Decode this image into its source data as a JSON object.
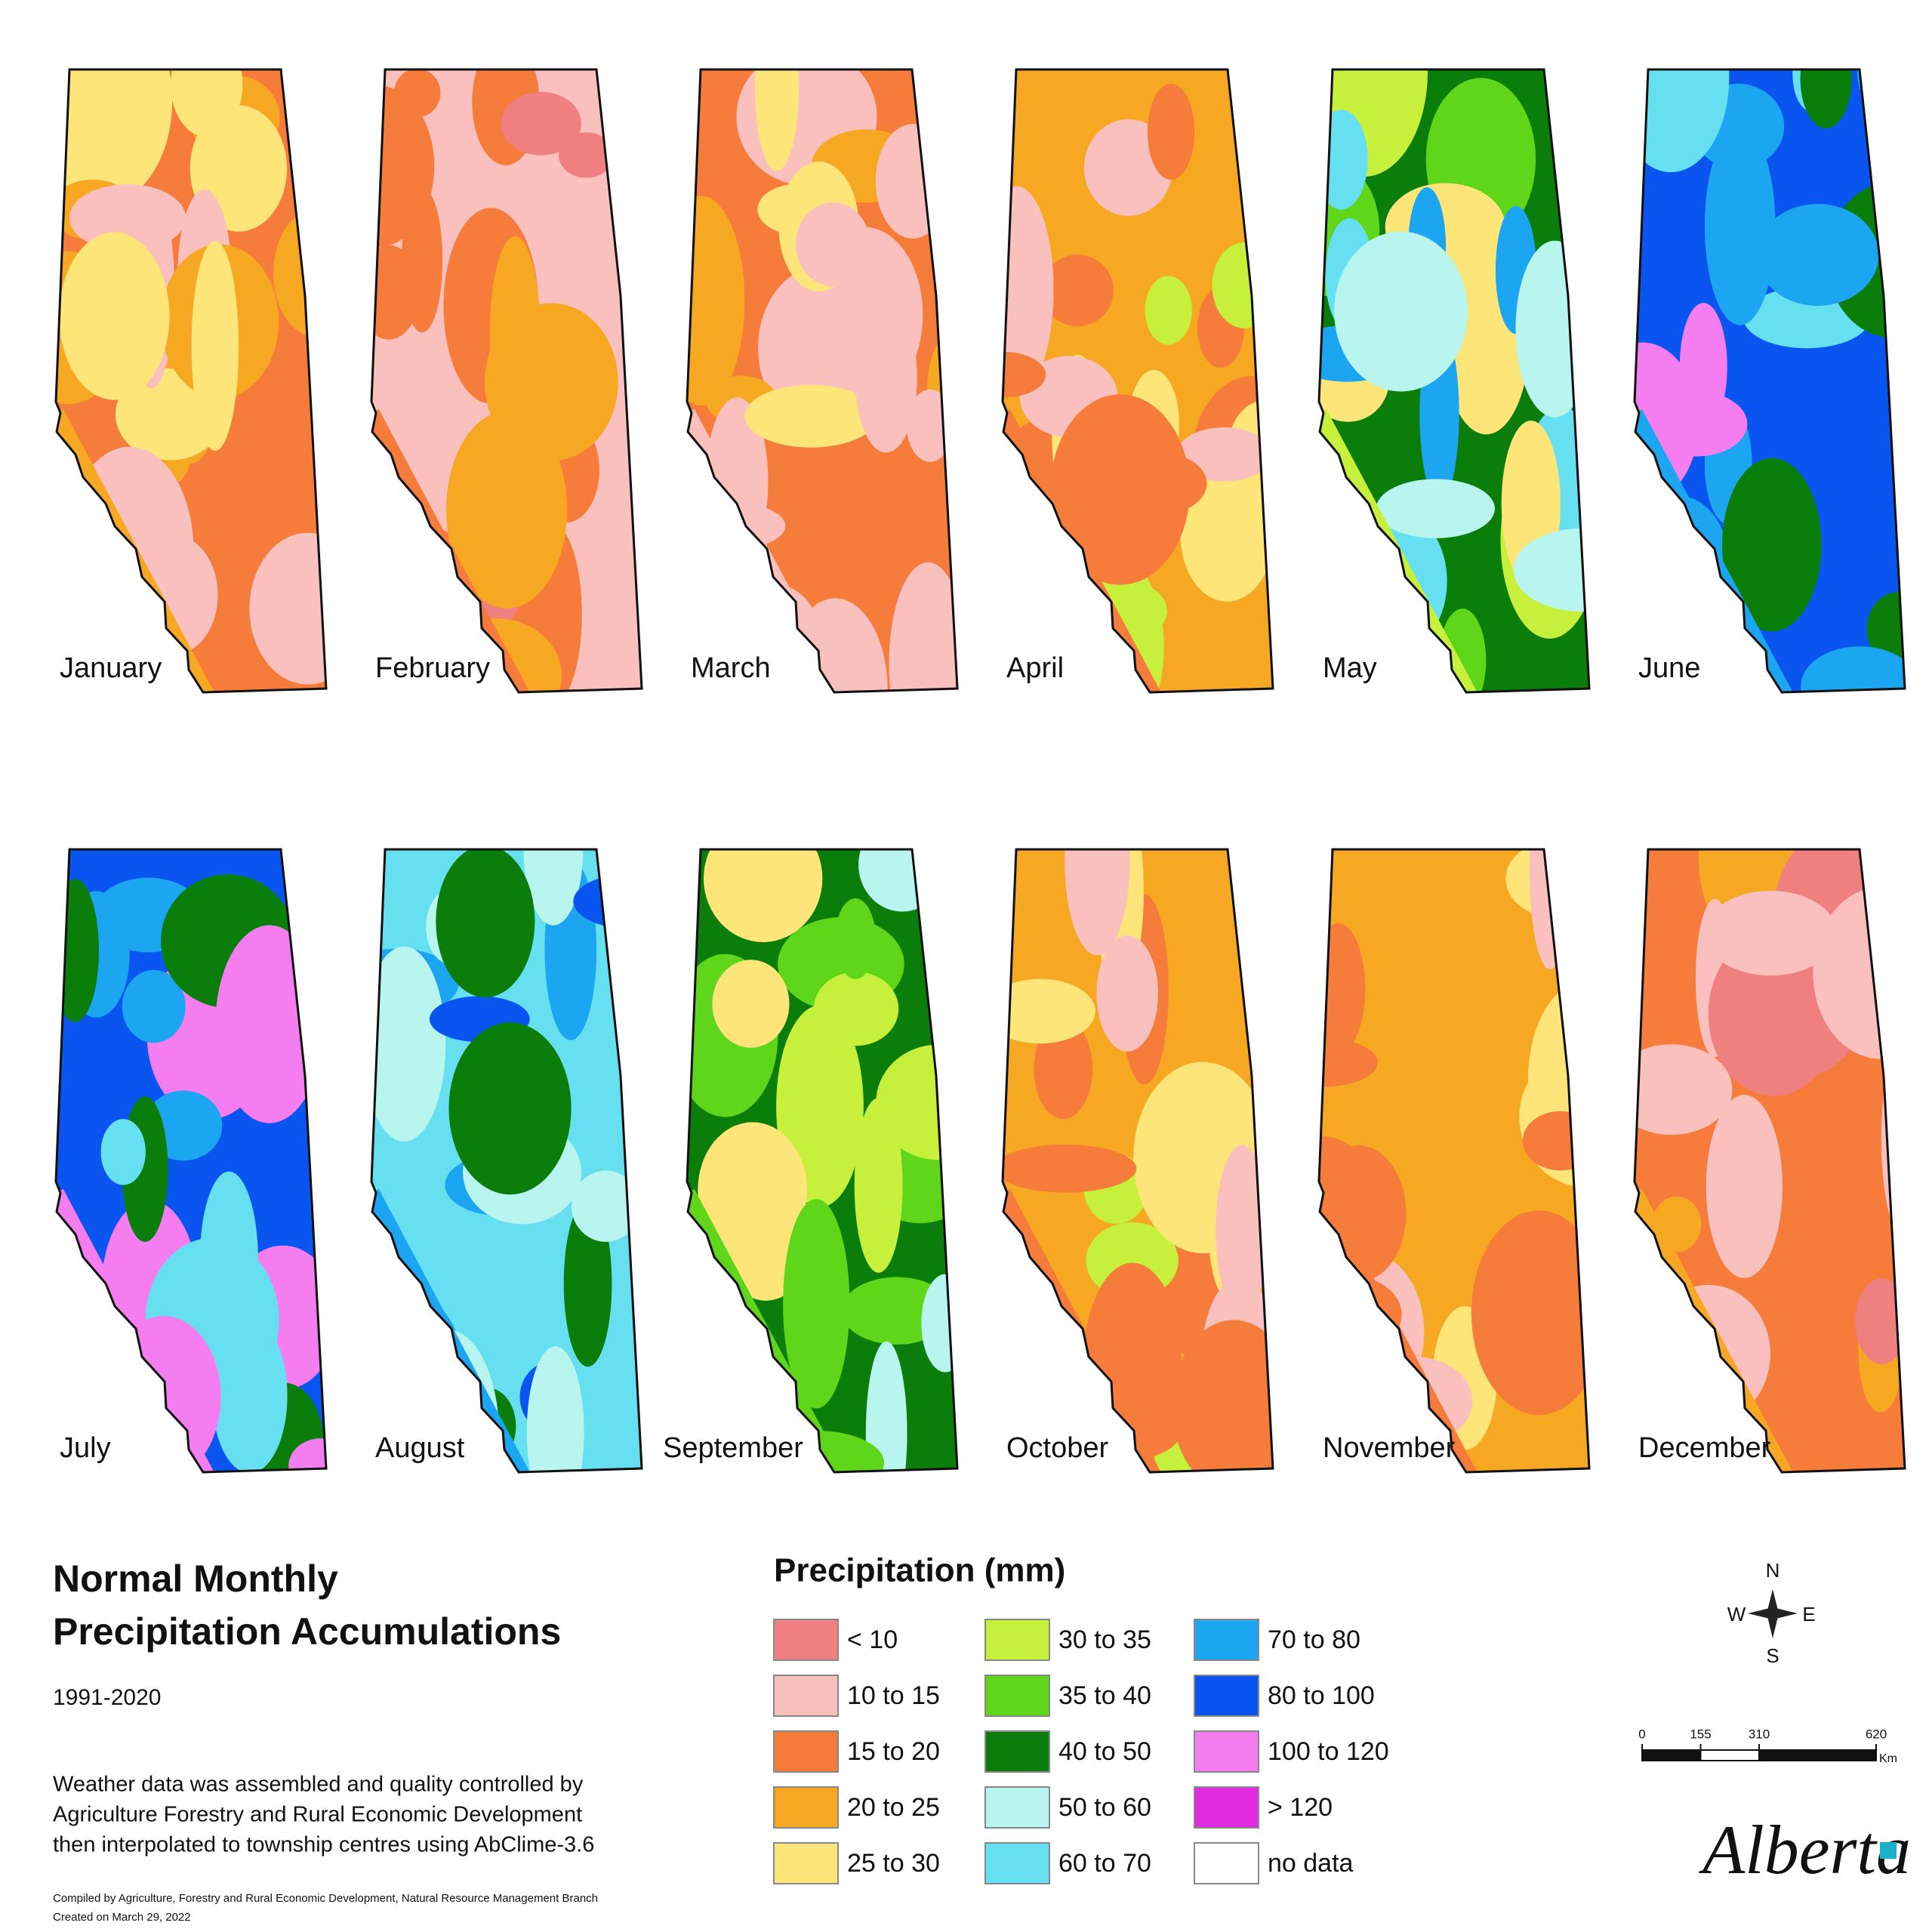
{
  "title": [
    "Normal Monthly",
    "Precipitation Accumulations"
  ],
  "period": "1991-2020",
  "description": [
    "Weather data was assembled and quality controlled by",
    "Agriculture Forestry and Rural Economic Development",
    "then interpolated to township centres using AbClime-3.6"
  ],
  "credits": [
    "Compiled by Agriculture, Forestry and Rural Economic Development, Natural Resource Management Branch",
    "Created on March 29, 2022"
  ],
  "months": [
    "January",
    "February",
    "March",
    "April",
    "May",
    "June",
    "July",
    "August",
    "September",
    "October",
    "November",
    "December"
  ],
  "legend": {
    "title": "Precipitation (mm)",
    "items": [
      {
        "label": "< 10",
        "color": "#f08080"
      },
      {
        "label": "10 to 15",
        "color": "#f9c0bd"
      },
      {
        "label": "15 to 20",
        "color": "#f57c3a"
      },
      {
        "label": "20 to 25",
        "color": "#f7a823"
      },
      {
        "label": "25 to 30",
        "color": "#fde57a"
      },
      {
        "label": "30 to 35",
        "color": "#c6f03c"
      },
      {
        "label": "35 to 40",
        "color": "#5fd61a"
      },
      {
        "label": "40 to 50",
        "color": "#0a7d0a"
      },
      {
        "label": "50 to 60",
        "color": "#b9f5ef"
      },
      {
        "label": "60 to 70",
        "color": "#66e0f0"
      },
      {
        "label": "70 to 80",
        "color": "#1ca5f0"
      },
      {
        "label": "80 to 100",
        "color": "#0a55f0"
      },
      {
        "label": "100 to 120",
        "color": "#f47ef0"
      },
      {
        "label": "> 120",
        "color": "#e02be0"
      },
      {
        "label": "no data",
        "color": "#ffffff"
      }
    ]
  },
  "scale": {
    "ticks": [
      0,
      155,
      310,
      620
    ],
    "unit": "Km"
  },
  "compass": {
    "n": "N",
    "e": "E",
    "s": "S",
    "w": "W"
  },
  "logo": "Alberta"
}
